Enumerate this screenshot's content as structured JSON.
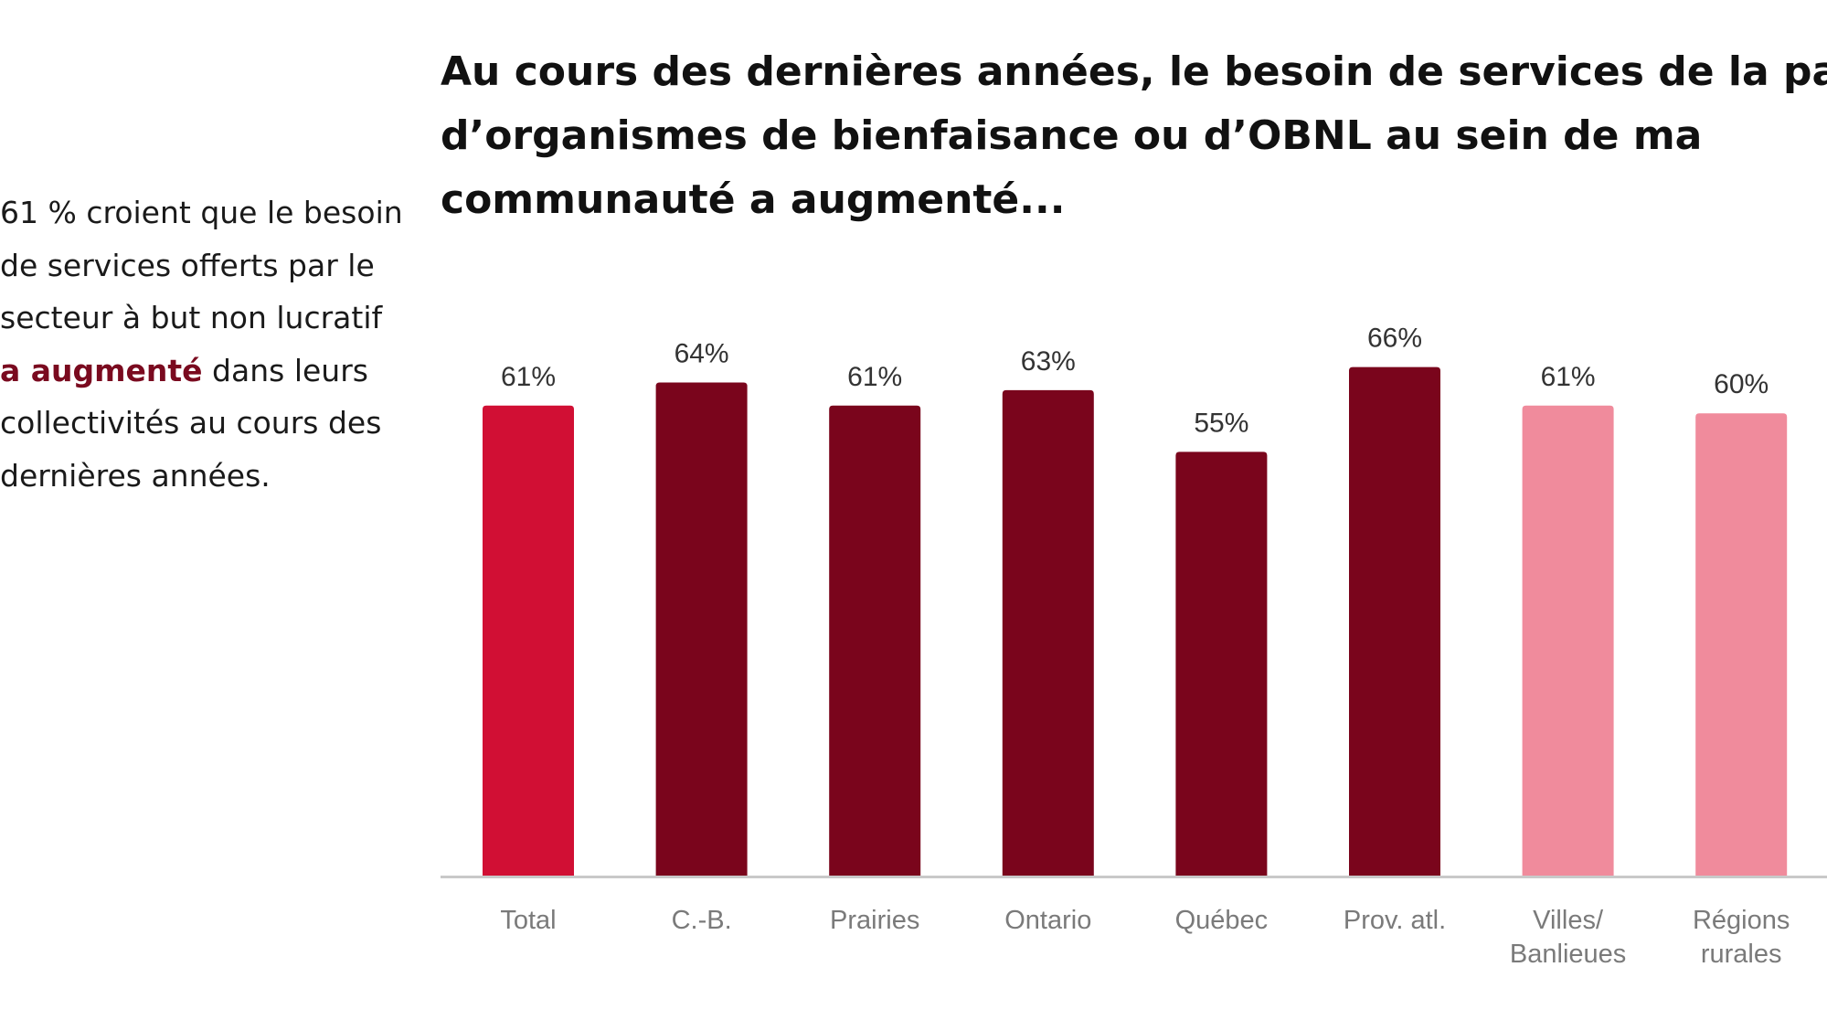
{
  "side_note": {
    "line1": "61 % croient que le besoin",
    "line2": "de services offerts par le",
    "line3": "secteur à but non lucratif",
    "line4_emph": "a augmenté",
    "line4_rest": " dans leurs",
    "line5": "collectivités au cours des",
    "line6": "dernières années."
  },
  "chart_data": {
    "type": "bar",
    "title_lines": [
      "Au cours des dernières années, le besoin de services de la part",
      "d’organismes de bienfaisance ou d’OBNL au sein de ma",
      "communauté a augmenté..."
    ],
    "categories": [
      [
        "Total"
      ],
      [
        "C.-B."
      ],
      [
        "Prairies"
      ],
      [
        "Ontario"
      ],
      [
        "Québec"
      ],
      [
        "Prov. atl."
      ],
      [
        "Villes/",
        "Banlieues"
      ],
      [
        "Régions",
        "rurales"
      ]
    ],
    "values": [
      61,
      64,
      61,
      63,
      55,
      66,
      61,
      60
    ],
    "value_labels": [
      "61%",
      "64%",
      "61%",
      "63%",
      "55%",
      "66%",
      "61%",
      "60%"
    ],
    "bar_colors": [
      "#d10f34",
      "#7a051c",
      "#7a051c",
      "#7a051c",
      "#7a051c",
      "#7a051c",
      "#f08b9c",
      "#f08b9c"
    ],
    "axis_color": "#c9c9c9",
    "ylim": [
      0,
      100
    ],
    "grid": false,
    "legend": "none"
  }
}
